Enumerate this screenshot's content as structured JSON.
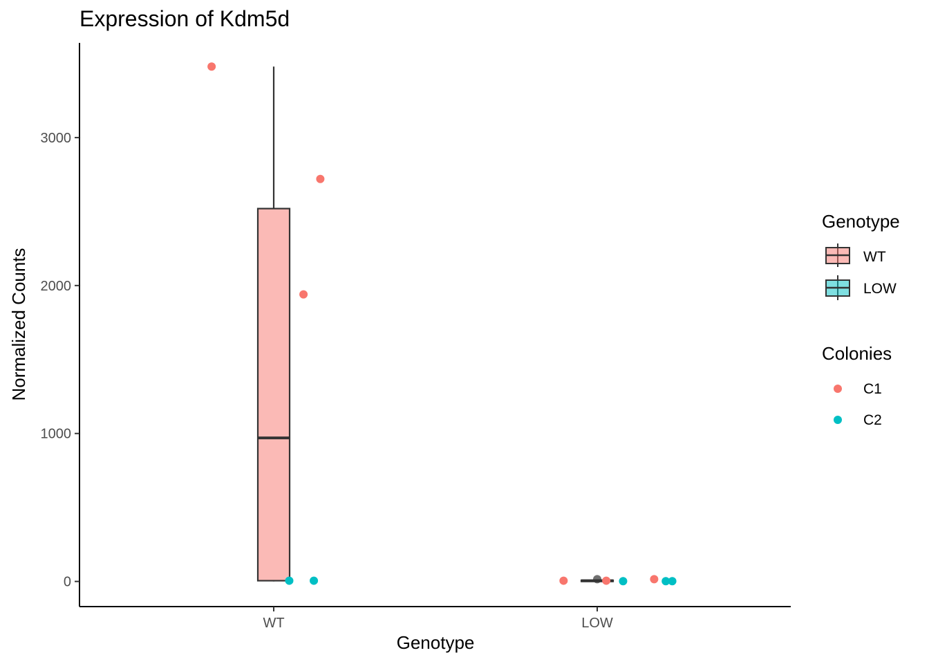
{
  "chart_data": {
    "type": "box",
    "title": "Expression of Kdm5d",
    "xlabel": "Genotype",
    "ylabel": "Normalized Counts",
    "categories": [
      "WT",
      "LOW"
    ],
    "ylim": [
      -170,
      3640
    ],
    "yticks": [
      0,
      1000,
      2000,
      3000
    ],
    "grid": false,
    "boxes": [
      {
        "category": "WT",
        "min": 0,
        "q1": 5,
        "median": 970,
        "q3": 2520,
        "max": 3480,
        "fill": "#F8766D",
        "outliers": []
      },
      {
        "category": "LOW",
        "min": 0,
        "q1": 0,
        "median": 5,
        "q3": 8,
        "max": 12,
        "fill": "#00BFC4",
        "outliers": [
          15
        ]
      }
    ],
    "points": [
      {
        "category": "WT",
        "jitter": -0.48,
        "value": 3480,
        "colony": "C1"
      },
      {
        "category": "WT",
        "jitter": 0.36,
        "value": 2720,
        "colony": "C1"
      },
      {
        "category": "WT",
        "jitter": 0.23,
        "value": 1940,
        "colony": "C1"
      },
      {
        "category": "WT",
        "jitter": 0.12,
        "value": 5,
        "colony": "C2"
      },
      {
        "category": "WT",
        "jitter": 0.31,
        "value": 5,
        "colony": "C2"
      },
      {
        "category": "LOW",
        "jitter": -0.26,
        "value": 5,
        "colony": "C1"
      },
      {
        "category": "LOW",
        "jitter": 0.07,
        "value": 5,
        "colony": "C1"
      },
      {
        "category": "LOW",
        "jitter": 0.44,
        "value": 15,
        "colony": "C1"
      },
      {
        "category": "LOW",
        "jitter": 0.2,
        "value": 2,
        "colony": "C2"
      },
      {
        "category": "LOW",
        "jitter": 0.53,
        "value": 2,
        "colony": "C2"
      },
      {
        "category": "LOW",
        "jitter": 0.58,
        "value": 2,
        "colony": "C2"
      }
    ],
    "legends": [
      {
        "title": "Genotype",
        "kind": "box",
        "entries": [
          {
            "label": "WT",
            "color": "#F8766D"
          },
          {
            "label": "LOW",
            "color": "#00BFC4"
          }
        ]
      },
      {
        "title": "Colonies",
        "kind": "point",
        "entries": [
          {
            "label": "C1",
            "color": "#F8766D"
          },
          {
            "label": "C2",
            "color": "#00BFC4"
          }
        ]
      }
    ],
    "legend_position": "right"
  }
}
